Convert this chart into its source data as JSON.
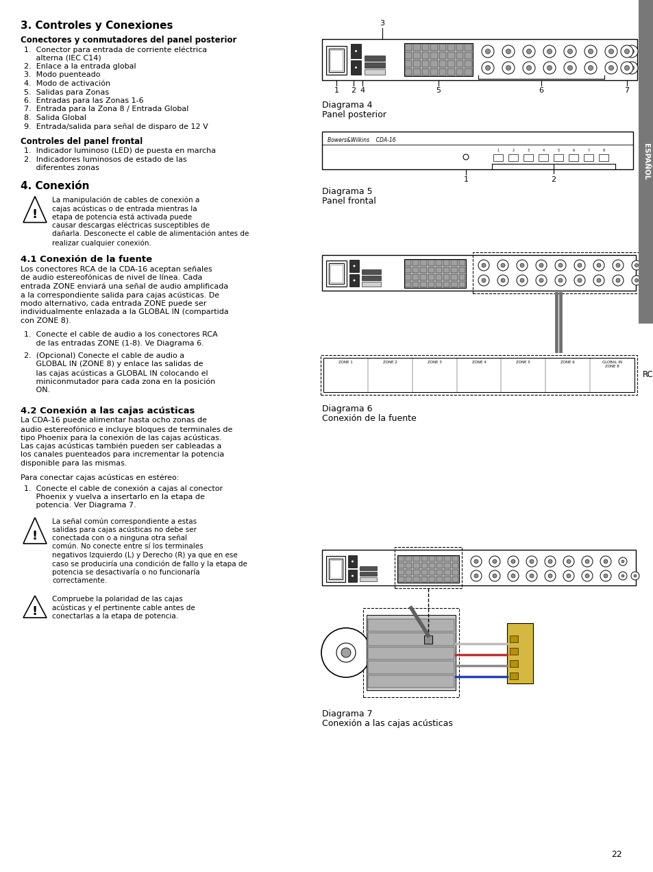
{
  "page_bg": "#ffffff",
  "sidebar_color": "#787878",
  "page_number": "22",
  "sidebar_text": "ESPAÑOL",
  "title": "3. Controles y Conexiones",
  "section1_bold": "Conectores y conmutadores del panel posterior",
  "section1_items": [
    "1.  Conector para entrada de corriente eléctrica\n     alterna (IEC C14)",
    "2.  Enlace a la entrada global",
    "3.  Modo puenteado",
    "4.  Modo de activación",
    "5.  Salidas para Zonas",
    "6.  Entradas para las Zonas 1-6",
    "7.  Entrada para la Zona 8 / Entrada Global",
    "8.  Salida Global",
    "9.  Entrada/salida para señal de disparo de 12 V"
  ],
  "section2_bold": "Controles del panel frontal",
  "section2_items": [
    "1.  Indicador luminoso (LED) de puesta en marcha",
    "2.  Indicadores luminosos de estado de las\n     diferentes zonas"
  ],
  "section3_title": "4. Conexión",
  "warning1_lines": [
    "La manipulación de cables de conexión a",
    "cajas acústicas o de entrada mientras la",
    "etapa de potencia está activada puede",
    "causar descargas eléctricas susceptibles de",
    "dañarla. Desconecte el cable de alimentación antes de",
    "realizar cualquier conexión."
  ],
  "section4_title": "4.1 Conexión de la fuente",
  "section4_body": [
    "Los conectores RCA de la CDA-16 aceptan señales",
    "de audio estereofónicas de nivel de línea. Cada",
    "entrada ZONE enviará una señal de audio amplificada",
    "a la correspondiente salida para cajas acústicas. De",
    "modo alternativo, cada entrada ZONE puede ser",
    "individualmente enlazada a la GLOBAL IN (compartida",
    "con ZONE 8)."
  ],
  "section4_item1": [
    "1.  Conecte el cable de audio a los conectores RCA",
    "     de las entradas ZONE (1-8). Ve Diagrama 6."
  ],
  "section4_item2": [
    "2.  (Opcional) Conecte el cable de audio a",
    "     GLOBAL IN (ZONE 8) y enlace las salidas de",
    "     las cajas acústicas a GLOBAL IN colocando el",
    "     miniconmutador para cada zona en la posición",
    "     ON."
  ],
  "section5_title": "4.2 Conexión a las cajas acústicas",
  "section5_body1": [
    "La CDA-16 puede alimentar hasta ocho zonas de",
    "audio estereofónico e incluye bloques de terminales de",
    "tipo Phoenix para la conexión de las cajas acústicas.",
    "Las cajas acústicas también pueden ser cableadas a",
    "los canales puenteados para incrementar la potencia",
    "disponible para las mismas."
  ],
  "section5_body2": "Para conectar cajas acústicas en estéreo:",
  "section5_item1": [
    "1.  Conecte el cable de conexión a cajas al conector",
    "     Phoenix y vuelva a insertarlo en la etapa de",
    "     potencia. Ver Diagrama 7."
  ],
  "warning2_lines": [
    "La señal común correspondiente a estas",
    "salidas para cajas acústicas no debe ser",
    "conectada con o a ninguna otra señal",
    "común. No conecte entre sí los terminales",
    "negativos Izquierdo (L) y Derecho (R) ya que en ese",
    "caso se produciría una condición de fallo y la etapa de",
    "potencia se desactivaría o no funcionaría",
    "correctamente."
  ],
  "warning3_lines": [
    "Compruebe la polaridad de las cajas",
    "acústicas y el pertinente cable antes de",
    "conectarlas a la etapa de potencia."
  ],
  "diag4_label": "Diagrama 4",
  "diag4_sub": "Panel posterior",
  "diag5_label": "Diagrama 5",
  "diag5_sub": "Panel frontal",
  "diag6_label": "Diagrama 6",
  "diag6_sub": "Conexión de la fuente",
  "diag6_rca": "RCA",
  "diag7_label": "Diagrama 7",
  "diag7_sub": "Conexión a las cajas acústicas"
}
